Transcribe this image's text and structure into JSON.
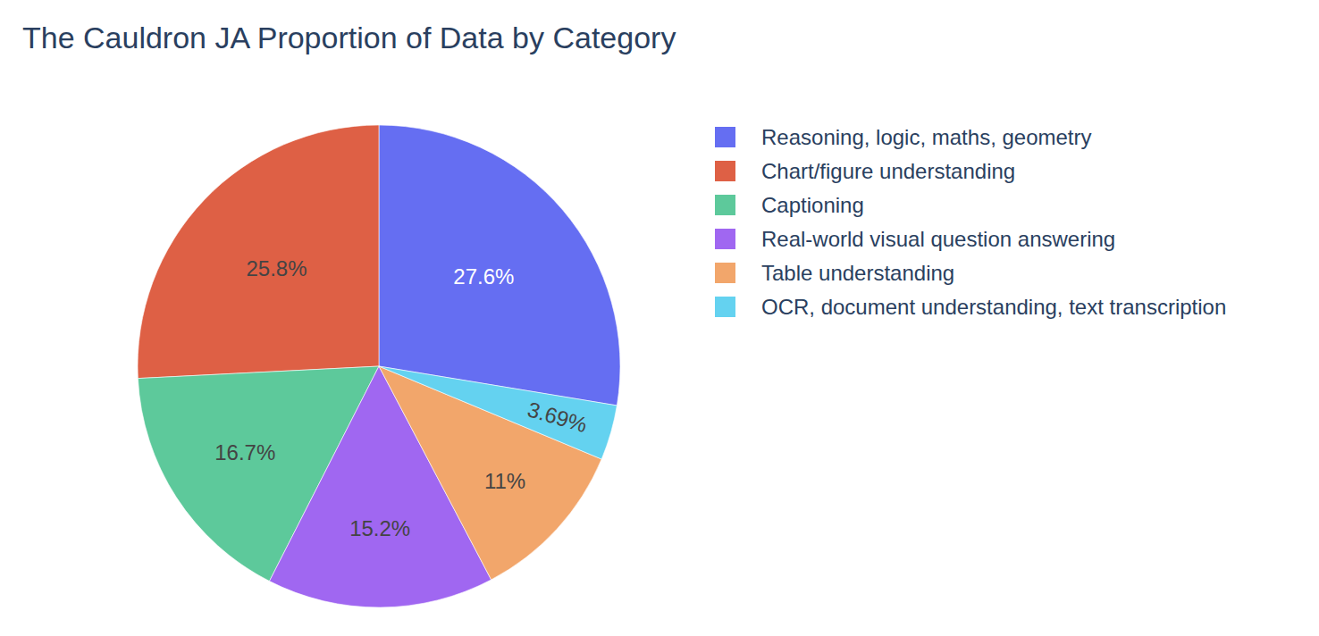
{
  "chart_data": {
    "type": "pie",
    "title": "The Cauldron JA Proportion of Data by Category",
    "categories": [
      "Reasoning, logic, maths, geometry",
      "Chart/figure understanding",
      "Captioning",
      "Real-world visual question answering",
      "Table understanding",
      "OCR, document understanding, text transcription"
    ],
    "values": [
      27.6,
      25.8,
      16.7,
      15.2,
      11,
      3.69
    ],
    "value_labels": [
      "27.6%",
      "25.8%",
      "16.7%",
      "15.2%",
      "11%",
      "3.69%"
    ],
    "colors": [
      "#656ef2",
      "#de6045",
      "#5dc99b",
      "#a067f1",
      "#f2a66b",
      "#64d2f0"
    ],
    "data_labels": true,
    "legend": "top-right"
  }
}
